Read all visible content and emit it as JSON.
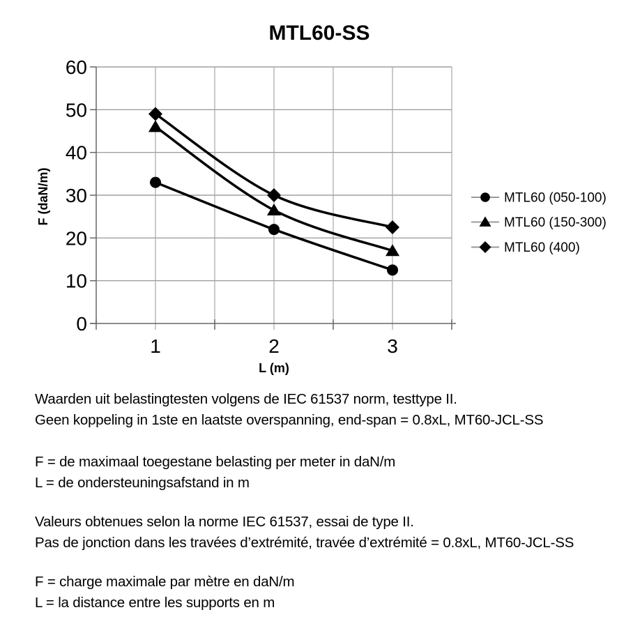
{
  "chart_data": {
    "type": "line",
    "title": "MTL60-SS",
    "xlabel": "L (m)",
    "ylabel": "F (daN/m)",
    "categories": [
      "1",
      "2",
      "3"
    ],
    "x": [
      1,
      2,
      3
    ],
    "ylim": [
      0,
      60
    ],
    "yticks": [
      0,
      10,
      20,
      30,
      40,
      50,
      60
    ],
    "grid": true,
    "smoothed": true,
    "legend_position": "right",
    "series": [
      {
        "name": "MTL60 (050-100)",
        "marker": "circle",
        "color": "#000000",
        "values": [
          33,
          22,
          12.5
        ]
      },
      {
        "name": "MTL60 (150-300)",
        "marker": "triangle",
        "color": "#000000",
        "values": [
          46,
          26.5,
          17
        ]
      },
      {
        "name": "MTL60 (400)",
        "marker": "diamond",
        "color": "#000000",
        "values": [
          49,
          30,
          22.5
        ]
      }
    ]
  },
  "colors": {
    "axis": "#666666",
    "h_gridline": "#8c8c8c",
    "v_gridline": "#a6a6a6",
    "legend_line": "#999999",
    "series": "#000000",
    "text": "#000000"
  },
  "notes": {
    "nl": {
      "line1": "Waarden uit belastingtesten volgens de IEC 61537 norm, testtype II.",
      "line2": "Geen koppeling in 1ste en laatste overspanning, end-span = 0.8xL, MT60-JCL-SS",
      "f_def": "F = de maximaal toegestane belasting per meter in daN/m",
      "l_def": "L = de ondersteuningsafstand in m"
    },
    "fr": {
      "line1": "Valeurs obtenues selon la norme IEC 61537, essai de type II.",
      "line2": "Pas de jonction dans les travées d’extrémité, travée d’extrémité = 0.8xL, MT60-JCL-SS",
      "f_def": "F = charge maximale par mètre en daN/m",
      "l_def": "L = la distance entre les supports en m"
    }
  }
}
